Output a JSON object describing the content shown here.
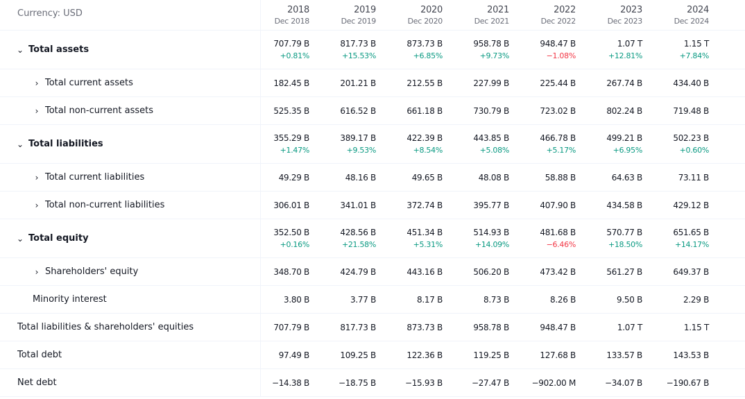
{
  "currency_label": "Currency: USD",
  "years": [
    {
      "year": "2018",
      "period": "Dec 2018"
    },
    {
      "year": "2019",
      "period": "Dec 2019"
    },
    {
      "year": "2020",
      "period": "Dec 2020"
    },
    {
      "year": "2021",
      "period": "Dec 2021"
    },
    {
      "year": "2022",
      "period": "Dec 2022"
    },
    {
      "year": "2023",
      "period": "Dec 2023"
    },
    {
      "year": "2024",
      "period": "Dec 2024"
    }
  ],
  "icons": {
    "expanded": "chevron-down-icon",
    "collapsed": "chevron-right-icon"
  },
  "colors": {
    "positive": "#089981",
    "negative": "#f23645"
  },
  "rows": [
    {
      "label": "Total assets",
      "toggle": "⌄",
      "bold": true,
      "values": [
        "707.79 B",
        "817.73 B",
        "873.73 B",
        "958.78 B",
        "948.47 B",
        "1.07 T",
        "1.15 T"
      ],
      "changes": [
        "+0.81%",
        "+15.53%",
        "+6.85%",
        "+9.73%",
        "−1.08%",
        "+12.81%",
        "+7.84%"
      ]
    },
    {
      "label": "Total current assets",
      "toggle": "›",
      "values": [
        "182.45 B",
        "201.21 B",
        "212.55 B",
        "227.99 B",
        "225.44 B",
        "267.74 B",
        "434.40 B"
      ]
    },
    {
      "label": "Total non-current assets",
      "toggle": "›",
      "values": [
        "525.35 B",
        "616.52 B",
        "661.18 B",
        "730.79 B",
        "723.02 B",
        "802.24 B",
        "719.48 B"
      ]
    },
    {
      "label": "Total liabilities",
      "toggle": "⌄",
      "bold": true,
      "values": [
        "355.29 B",
        "389.17 B",
        "422.39 B",
        "443.85 B",
        "466.78 B",
        "499.21 B",
        "502.23 B"
      ],
      "changes": [
        "+1.47%",
        "+9.53%",
        "+8.54%",
        "+5.08%",
        "+5.17%",
        "+6.95%",
        "+0.60%"
      ]
    },
    {
      "label": "Total current liabilities",
      "toggle": "›",
      "values": [
        "49.29 B",
        "48.16 B",
        "49.65 B",
        "48.08 B",
        "58.88 B",
        "64.63 B",
        "73.11 B"
      ]
    },
    {
      "label": "Total non-current liabilities",
      "toggle": "›",
      "values": [
        "306.01 B",
        "341.01 B",
        "372.74 B",
        "395.77 B",
        "407.90 B",
        "434.58 B",
        "429.12 B"
      ]
    },
    {
      "label": "Total equity",
      "toggle": "⌄",
      "bold": true,
      "values": [
        "352.50 B",
        "428.56 B",
        "451.34 B",
        "514.93 B",
        "481.68 B",
        "570.77 B",
        "651.65 B"
      ],
      "changes": [
        "+0.16%",
        "+21.58%",
        "+5.31%",
        "+14.09%",
        "−6.46%",
        "+18.50%",
        "+14.17%"
      ]
    },
    {
      "label": "Shareholders' equity",
      "toggle": "›",
      "values": [
        "348.70 B",
        "424.79 B",
        "443.16 B",
        "506.20 B",
        "473.42 B",
        "561.27 B",
        "649.37 B"
      ]
    },
    {
      "label": "Minority interest",
      "values": [
        "3.80 B",
        "3.77 B",
        "8.17 B",
        "8.73 B",
        "8.26 B",
        "9.50 B",
        "2.29 B"
      ]
    },
    {
      "label": "Total liabilities & shareholders' equities",
      "values": [
        "707.79 B",
        "817.73 B",
        "873.73 B",
        "958.78 B",
        "948.47 B",
        "1.07 T",
        "1.15 T"
      ]
    },
    {
      "label": "Total debt",
      "values": [
        "97.49 B",
        "109.25 B",
        "122.36 B",
        "119.25 B",
        "127.68 B",
        "133.57 B",
        "143.53 B"
      ]
    },
    {
      "label": "Net debt",
      "values": [
        "−14.38 B",
        "−18.75 B",
        "−15.93 B",
        "−27.47 B",
        "−902.00 M",
        "−34.07 B",
        "−190.67 B"
      ]
    }
  ]
}
